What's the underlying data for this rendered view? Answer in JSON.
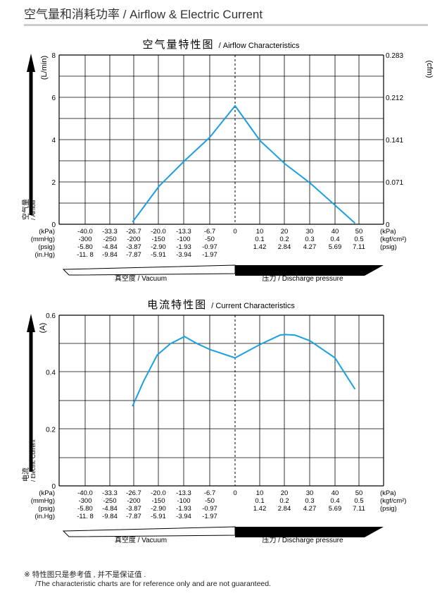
{
  "page": {
    "heading": "空气量和消耗功率 / Airflow & Electric Current",
    "note_line1": "※ 特性图只是参考值 , 并不是保证值 .",
    "note_line2": "/The characteristic charts are for reference only and are not guaranteed."
  },
  "colors": {
    "curve": "#1aa0e0",
    "grid": "#000000",
    "text": "#000000",
    "heading": "#333333"
  },
  "axis_rows": [
    {
      "unit": "(kPa)",
      "values": [
        "-40.0",
        "-33.3",
        "-26.7",
        "-20.0",
        "-13.3",
        "-6.7",
        "0",
        "10",
        "20",
        "30",
        "40",
        "50"
      ],
      "unit_right": "(kPa)"
    },
    {
      "unit": "(mmHg)",
      "values": [
        "-300",
        "-250",
        "-200",
        "-150",
        "-100",
        "-50",
        "",
        "0.1",
        "0.2",
        "0.3",
        "0.4",
        "0.5"
      ],
      "unit_right": "(kgf/cm²)"
    },
    {
      "unit": "(psig)",
      "values": [
        "-5.80",
        "-4.84",
        "-3.87",
        "-2.90",
        "-1.93",
        "-0.97",
        "",
        "1.42",
        "2.84",
        "4.27",
        "5.69",
        "7.11"
      ],
      "unit_right": "(psig)"
    },
    {
      "unit": "(in.Hg)",
      "values": [
        "-11. 8",
        "-9.84",
        "-7.87",
        "-5.91",
        "-3.94",
        "-1.97",
        "",
        "",
        "",
        "",
        "",
        ""
      ],
      "unit_right": ""
    }
  ],
  "band": {
    "vacuum_label": "真空度 / Vacuum",
    "pressure_label": "压力 / Discharge pressure"
  },
  "chart_data": [
    {
      "type": "line",
      "title": "空气量特性图 / Airflow Characteristics",
      "ylabel": "(L/min)",
      "ylabel_right": "(cfm)",
      "side_label": "空气量 / Airflow",
      "ylim": [
        0,
        8
      ],
      "yticks": [
        "0",
        "2",
        "4",
        "6",
        "8"
      ],
      "yticks_right": [
        "0",
        "0.071",
        "0.141",
        "0.212",
        "0.283"
      ],
      "xlabel": "",
      "grid": true,
      "x_note": "vacuum side in kPa (-40 to 0), pressure side in kPa (0 to 50)",
      "series": [
        {
          "values_vacuum": [
            [
              -27,
              0.1
            ],
            [
              -20,
              1.8
            ],
            [
              -13.3,
              3.0
            ],
            [
              -6.7,
              4.1
            ],
            [
              0,
              5.6
            ]
          ],
          "values_pressure": [
            [
              0,
              5.6
            ],
            [
              10,
              3.95
            ],
            [
              20,
              2.85
            ],
            [
              30,
              1.95
            ],
            [
              40,
              0.9
            ],
            [
              48,
              0.05
            ]
          ]
        }
      ]
    },
    {
      "type": "line",
      "title": "电流特性图 / Current Characteristics",
      "ylabel": "(A)",
      "side_label": "电流 / Electric Current",
      "ylim": [
        0,
        0.6
      ],
      "yticks": [
        "0",
        "0.2",
        "0.4",
        "0.6"
      ],
      "xlabel": "",
      "grid": true,
      "x_note": "vacuum side in kPa (-40 to 0), pressure side in kPa (0 to 50)",
      "series": [
        {
          "values_vacuum": [
            [
              -27,
              0.28
            ],
            [
              -24,
              0.37
            ],
            [
              -20.5,
              0.46
            ],
            [
              -17,
              0.5
            ],
            [
              -13.3,
              0.525
            ],
            [
              -10,
              0.5
            ],
            [
              -6.7,
              0.48
            ],
            [
              0,
              0.45
            ]
          ],
          "values_pressure": [
            [
              0,
              0.45
            ],
            [
              10,
              0.497
            ],
            [
              18,
              0.53
            ],
            [
              20,
              0.532
            ],
            [
              24,
              0.53
            ],
            [
              30,
              0.51
            ],
            [
              40,
              0.45
            ],
            [
              48,
              0.34
            ]
          ]
        }
      ]
    }
  ]
}
